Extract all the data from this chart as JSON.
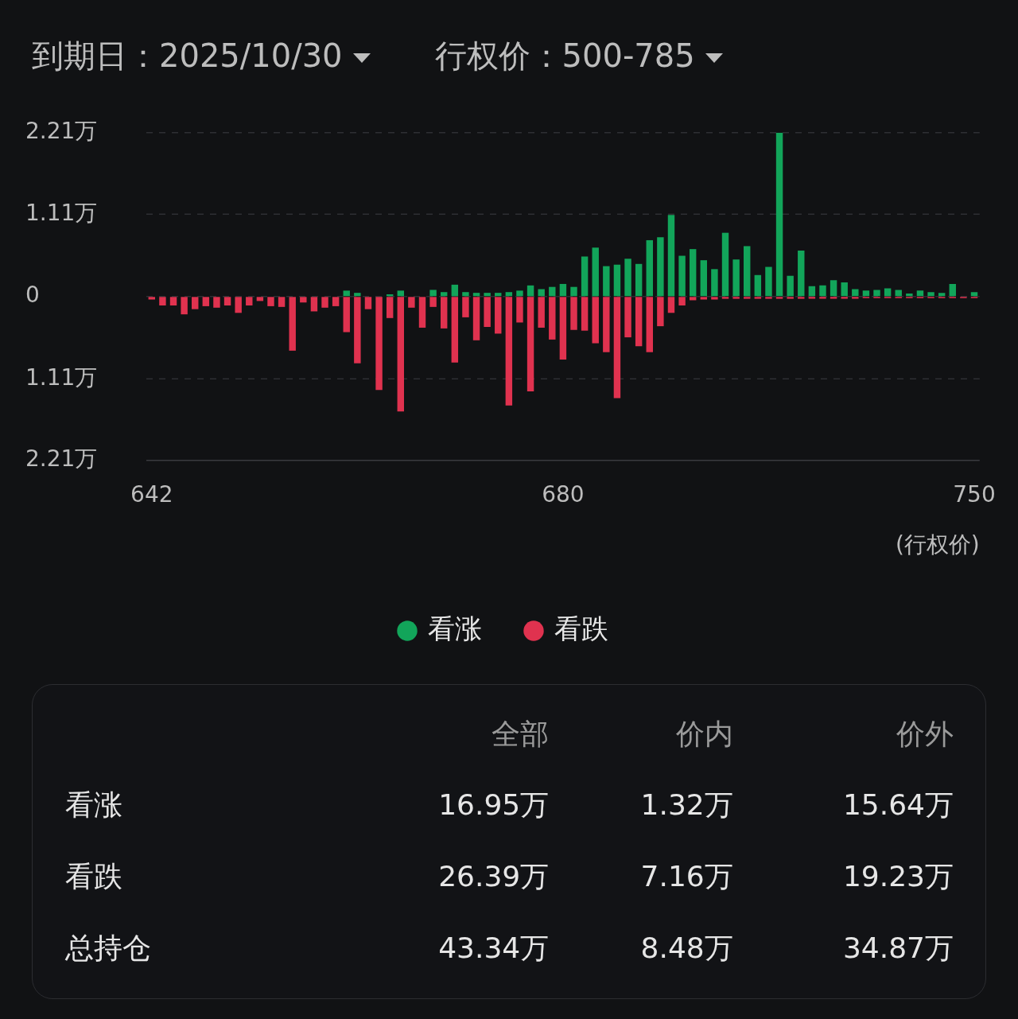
{
  "chart_data": [
    {
      "type": "bar",
      "title": "到期日：2025/10/30",
      "subtitle": "行权价：500-785",
      "xlabel": "(行权价)",
      "categories": [
        "642",
        null,
        null,
        null,
        null,
        null,
        null,
        null,
        null,
        null,
        null,
        null,
        null,
        null,
        null,
        null,
        null,
        null,
        null,
        null,
        null,
        null,
        null,
        null,
        null,
        null,
        null,
        null,
        null,
        null,
        null,
        null,
        null,
        null,
        null,
        null,
        null,
        null,
        "680",
        null,
        null,
        null,
        null,
        null,
        null,
        null,
        null,
        null,
        null,
        null,
        null,
        null,
        null,
        null,
        null,
        null,
        null,
        null,
        null,
        null,
        null,
        null,
        null,
        null,
        null,
        null,
        null,
        null,
        null,
        null,
        null,
        null,
        null,
        null,
        null,
        null,
        "750"
      ],
      "series": [
        {
          "name": "看涨",
          "color": "#12a55a",
          "values": [
            0,
            0,
            0,
            0,
            0,
            0,
            0,
            0,
            0,
            0,
            0,
            0,
            0,
            0,
            0,
            0,
            0,
            0,
            0.08,
            0.05,
            0,
            0,
            0.03,
            0.08,
            0,
            0,
            0.09,
            0.06,
            0.16,
            0.06,
            0.05,
            0.05,
            0.05,
            0.06,
            0.08,
            0.15,
            0.1,
            0.13,
            0.17,
            0.13,
            0.54,
            0.66,
            0.41,
            0.43,
            0.51,
            0.44,
            0.76,
            0.8,
            1.1,
            0.55,
            0.64,
            0.49,
            0.37,
            0.86,
            0.5,
            0.68,
            0.29,
            0.4,
            2.21,
            0.28,
            0.62,
            0.14,
            0.15,
            0.22,
            0.19,
            0.1,
            0.08,
            0.09,
            0.11,
            0.09,
            0.04,
            0.08,
            0.06,
            0.05,
            0.17,
            0,
            0.06
          ]
        },
        {
          "name": "看跌",
          "color": "#e0324f",
          "values": [
            -0.04,
            -0.12,
            -0.12,
            -0.24,
            -0.17,
            -0.13,
            -0.15,
            -0.12,
            -0.22,
            -0.12,
            -0.06,
            -0.13,
            -0.14,
            -0.73,
            -0.08,
            -0.2,
            -0.15,
            -0.13,
            -0.48,
            -0.9,
            -0.17,
            -1.26,
            -0.29,
            -1.55,
            -0.15,
            -0.42,
            -0.14,
            -0.43,
            -0.89,
            -0.28,
            -0.59,
            -0.41,
            -0.5,
            -1.47,
            -0.35,
            -1.28,
            -0.42,
            -0.58,
            -0.85,
            -0.45,
            -0.46,
            -0.63,
            -0.75,
            -1.37,
            -0.55,
            -0.67,
            -0.75,
            -0.4,
            -0.22,
            -0.12,
            -0.05,
            -0.04,
            -0.04,
            -0.03,
            -0.03,
            -0.03,
            -0.03,
            -0.03,
            -0.03,
            -0.03,
            -0.03,
            -0.03,
            -0.03,
            -0.03,
            -0.03,
            -0.03,
            -0.02,
            -0.02,
            -0.02,
            -0.02,
            -0.02,
            -0.02,
            -0.02,
            -0.02,
            -0.02,
            -0.02,
            -0.02
          ]
        }
      ],
      "ylim": [
        -2.21,
        2.21
      ],
      "yticks": [
        {
          "value": 2.21,
          "label": "2.21万"
        },
        {
          "value": 1.11,
          "label": "1.11万"
        },
        0,
        {
          "value": -1.11,
          "label": "1.11万"
        },
        {
          "value": -2.21,
          "label": "2.21万"
        }
      ],
      "grid": "y",
      "legend": "bottom",
      "stacked": true
    },
    {
      "type": "other",
      "categories": [
        "全部",
        "价内",
        "价外"
      ],
      "series": [
        {
          "name": "看涨",
          "values": [
            16.95,
            1.32,
            15.64
          ],
          "value_labels": [
            "16.95万",
            "1.32万",
            "15.64万"
          ]
        },
        {
          "name": "看跌",
          "values": [
            26.39,
            7.16,
            19.23
          ],
          "value_labels": [
            "26.39万",
            "7.16万",
            "19.23万"
          ]
        },
        {
          "name": "总持仓",
          "values": [
            43.34,
            8.48,
            34.87
          ],
          "value_labels": [
            "43.34万",
            "8.48万",
            "34.87万"
          ]
        }
      ]
    }
  ]
}
